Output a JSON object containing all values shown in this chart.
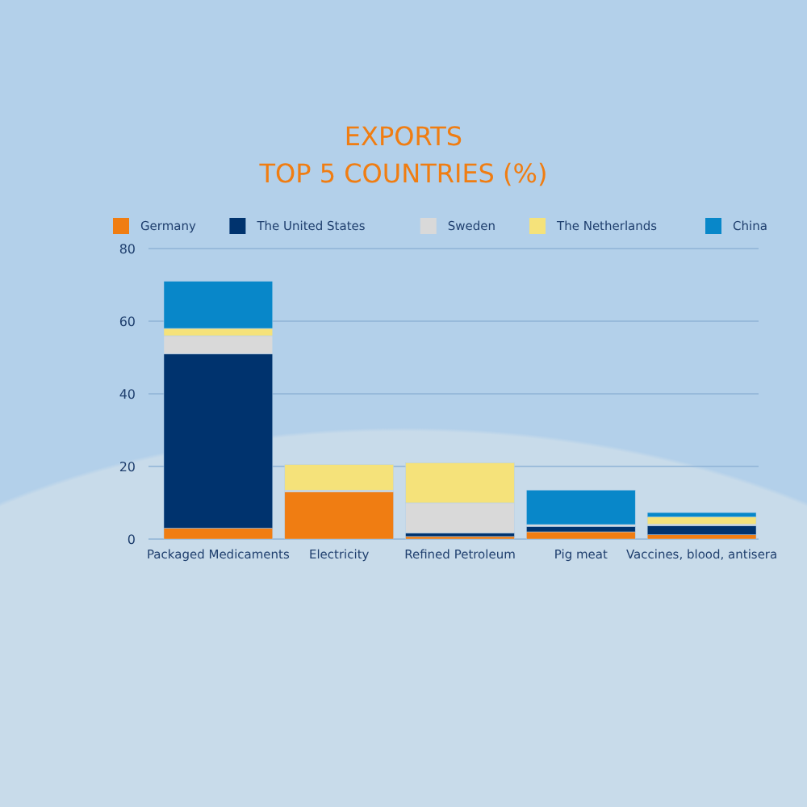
{
  "chart_data": {
    "type": "bar",
    "title": "EXPORTS",
    "subtitle": "TOP 5 COUNTRIES (%)",
    "stacked": true,
    "categories": [
      "Packaged Medicaments",
      "Electricity",
      "Refined Petroleum",
      "Pig meat",
      "Vaccines, blood, antisera"
    ],
    "series": [
      {
        "name": "Germany",
        "color": "#f07d12",
        "values": [
          3,
          13,
          0.7,
          2,
          1.2
        ]
      },
      {
        "name": "The United States",
        "color": "#00336e",
        "values": [
          48,
          0,
          1,
          1.5,
          2.5
        ]
      },
      {
        "name": "Sweden",
        "color": "#d9d9d9",
        "values": [
          5,
          0.5,
          8.3,
          0.5,
          0.4
        ]
      },
      {
        "name": "The Netherlands",
        "color": "#f5e27a",
        "values": [
          2,
          7,
          11,
          0,
          2
        ]
      },
      {
        "name": "China",
        "color": "#0887c9",
        "values": [
          13,
          0,
          0,
          9.5,
          1.2
        ]
      }
    ],
    "ylim": [
      0,
      80
    ],
    "yticks": [
      0,
      20,
      40,
      60,
      80
    ],
    "grid": "y",
    "legend": "top"
  }
}
